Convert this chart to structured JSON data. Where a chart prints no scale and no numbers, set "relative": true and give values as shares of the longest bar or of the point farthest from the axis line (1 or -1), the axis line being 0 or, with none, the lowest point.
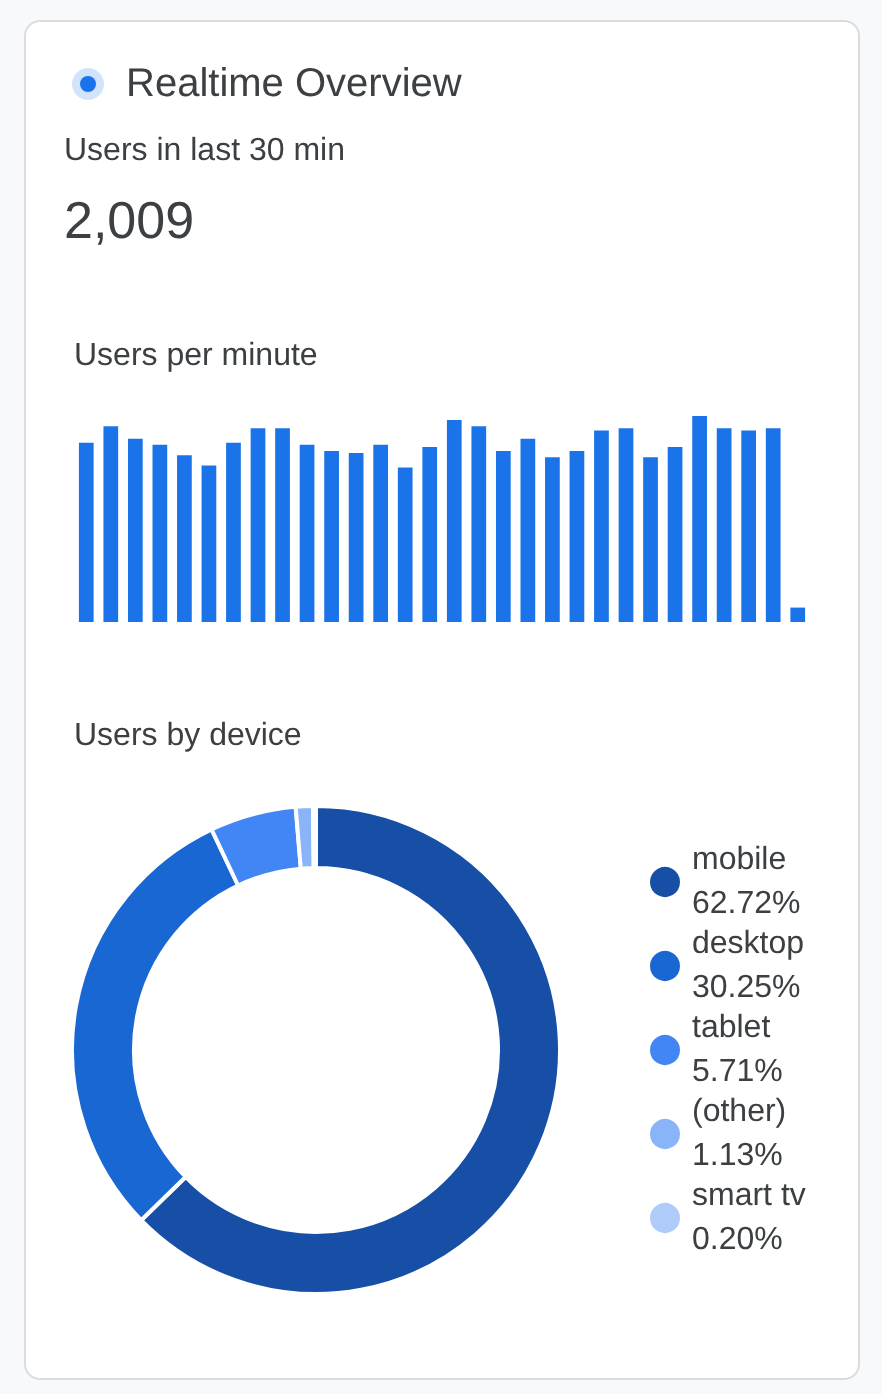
{
  "chart_data": [
    {
      "type": "other",
      "title": "Realtime Overview",
      "annotations": [
        "Users in last 30 min",
        "2,009"
      ]
    },
    {
      "type": "bar",
      "title": "Users per minute",
      "relative": true,
      "categories": [
        null,
        null,
        null,
        null,
        null,
        null,
        null,
        null,
        null,
        null,
        null,
        null,
        null,
        null,
        null,
        null,
        null,
        null,
        null,
        null,
        null,
        null,
        null,
        null,
        null,
        null,
        null,
        null,
        null,
        null
      ],
      "values": [
        0.87,
        0.95,
        0.89,
        0.86,
        0.81,
        0.76,
        0.87,
        0.94,
        0.94,
        0.86,
        0.83,
        0.82,
        0.86,
        0.75,
        0.85,
        0.98,
        0.95,
        0.83,
        0.89,
        0.8,
        0.83,
        0.93,
        0.94,
        0.8,
        0.85,
        1,
        0.94,
        0.93,
        0.94,
        0.07
      ],
      "color": "#1a73e8",
      "grid": false
    },
    {
      "type": "donut",
      "title": "Users by device",
      "categories": [
        "mobile",
        "desktop",
        "tablet",
        "(other)",
        "smart tv"
      ],
      "values": [
        62.72,
        30.25,
        5.71,
        1.13,
        0.2
      ],
      "value_labels": [
        "62.72%",
        "30.25%",
        "5.71%",
        "1.13%",
        "0.20%"
      ],
      "colors": [
        "#174ea6",
        "#1967d2",
        "#4285f4",
        "#8ab4f8",
        "#aecbfa"
      ],
      "legend": "right"
    }
  ]
}
